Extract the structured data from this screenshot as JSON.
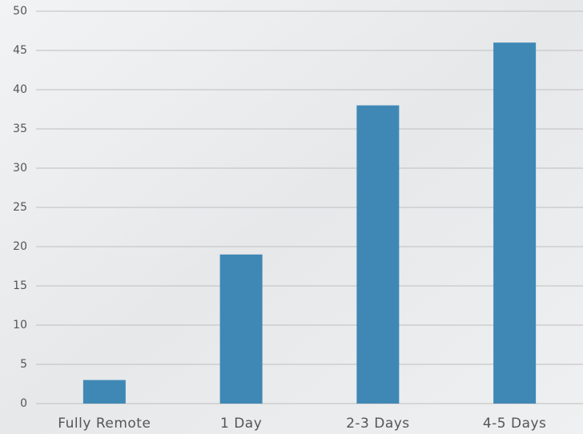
{
  "chart_data": {
    "type": "bar",
    "categories": [
      "Fully Remote",
      "1 Day",
      "2-3 Days",
      "4-5 Days"
    ],
    "values": [
      3,
      19,
      38,
      46
    ],
    "color": "#3f88b5",
    "ylim": [
      0,
      50
    ],
    "yticks": [
      0,
      5,
      10,
      15,
      20,
      25,
      30,
      35,
      40,
      45,
      50
    ],
    "grid": true
  }
}
